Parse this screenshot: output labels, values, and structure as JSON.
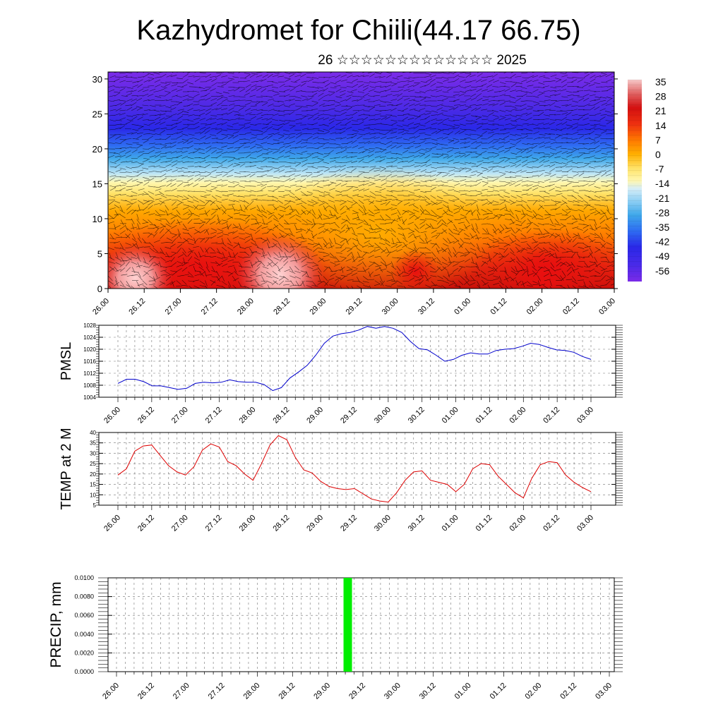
{
  "title": "Kazhydromet for Chiili(44.17 66.75)",
  "subtitle": "26 ☆☆☆☆☆☆☆☆☆☆☆☆☆ 2025",
  "chart_data": [
    {
      "type": "heatmap",
      "xlabel": "",
      "ylabel": "",
      "x_tick_labels": [
        "26.00",
        "26.12",
        "27.00",
        "27.12",
        "28.00",
        "28.12",
        "29.00",
        "29.12",
        "30.00",
        "30.12",
        "01.00",
        "01.12",
        "02.00",
        "02.12",
        "03.00"
      ],
      "y_range": [
        0,
        31
      ],
      "y_ticks": [
        0,
        5,
        10,
        15,
        20,
        25,
        30
      ],
      "colorbar_labels": [
        "35",
        "28",
        "21",
        "14",
        "7",
        "0",
        "-7",
        "-14",
        "-21",
        "-28",
        "-35",
        "-42",
        "-49",
        "-56"
      ],
      "colorbar_range": [
        -60,
        38
      ],
      "features": "temperature shading by height with wind barbs overlaid",
      "warm_cores": [
        {
          "x": 0.75,
          "y": 1.5,
          "value": 32
        },
        {
          "x": 4.75,
          "y": 2.0,
          "value": 36
        },
        {
          "x": 8.5,
          "y": 2.5,
          "value": 24
        },
        {
          "x": 12.0,
          "y": 2.0,
          "value": 25
        }
      ],
      "colors": {
        "hot": "#f6c8c8",
        "warm": "#e01010",
        "orange": "#ff9a00",
        "yellow": "#ffee66",
        "cold": "#2a3cff",
        "coldest": "#7b2be8"
      }
    },
    {
      "type": "line",
      "ylabel": "PMSL",
      "x_tick_labels": [
        "26.00",
        "26.12",
        "27.00",
        "27.12",
        "28.00",
        "28.12",
        "29.00",
        "29.12",
        "30.00",
        "30.12",
        "01.00",
        "01.12",
        "02.00",
        "02.12",
        "03.00"
      ],
      "ylim": [
        1004,
        1028
      ],
      "y_ticks": [
        "1004",
        "1008",
        "1012",
        "1016",
        "1020",
        "1024",
        "1028"
      ],
      "grid": true,
      "color": "#0000cc",
      "values": [
        1008.6,
        1010.0,
        1010.0,
        1009.2,
        1007.8,
        1007.8,
        1007.2,
        1006.6,
        1007.0,
        1008.6,
        1009.0,
        1008.8,
        1009.0,
        1009.8,
        1009.2,
        1009.0,
        1009.0,
        1008.2,
        1006.2,
        1007.2,
        1010.4,
        1012.4,
        1014.6,
        1018.0,
        1022.0,
        1024.4,
        1025.2,
        1025.6,
        1026.4,
        1027.6,
        1027.0,
        1027.6,
        1027.0,
        1025.6,
        1022.6,
        1020.2,
        1019.8,
        1018.0,
        1016.0,
        1016.6,
        1018.0,
        1018.8,
        1018.4,
        1018.4,
        1019.6,
        1020.0,
        1020.2,
        1021.0,
        1022.0,
        1021.6,
        1020.6,
        1019.8,
        1019.6,
        1019.0,
        1017.6,
        1016.6
      ]
    },
    {
      "type": "line",
      "ylabel": "TEMP at 2 M",
      "x_tick_labels": [
        "26.00",
        "26.12",
        "27.00",
        "27.12",
        "28.00",
        "28.12",
        "29.00",
        "29.12",
        "30.00",
        "30.12",
        "01.00",
        "01.12",
        "02.00",
        "02.12",
        "03.00"
      ],
      "ylim": [
        5,
        40
      ],
      "y_ticks": [
        "5",
        "10",
        "15",
        "20",
        "25",
        "30",
        "35",
        "40"
      ],
      "grid": true,
      "color": "#dd0000",
      "values": [
        19.5,
        22.5,
        31.0,
        33.5,
        34.0,
        29.0,
        24.0,
        21.0,
        19.5,
        23.5,
        31.5,
        34.5,
        33.0,
        26.0,
        24.0,
        20.0,
        17.0,
        25.0,
        34.0,
        38.5,
        36.5,
        28.0,
        22.0,
        20.5,
        16.5,
        14.0,
        13.0,
        12.5,
        13.0,
        10.5,
        8.0,
        7.0,
        6.5,
        11.0,
        17.0,
        21.0,
        21.5,
        17.0,
        16.0,
        15.0,
        11.5,
        15.0,
        22.5,
        25.0,
        24.5,
        19.0,
        15.0,
        11.0,
        8.5,
        18.0,
        24.5,
        26.0,
        25.5,
        19.5,
        16.0,
        13.5,
        11.5
      ]
    },
    {
      "type": "bar",
      "ylabel": "PRECIP, mm",
      "x_tick_labels": [
        "26.00",
        "26.12",
        "27.00",
        "27.12",
        "28.00",
        "28.12",
        "29.00",
        "29.12",
        "30.00",
        "30.12",
        "01.00",
        "01.12",
        "02.00",
        "02.12",
        "03.00"
      ],
      "ylim": [
        0,
        0.01
      ],
      "y_ticks": [
        "0.0000",
        "0.0020",
        "0.0040",
        "0.0060",
        "0.0080",
        "0.0100"
      ],
      "grid": true,
      "color": "#00ee00",
      "bars": [
        {
          "x": 6.75,
          "value": 0.01
        }
      ]
    }
  ]
}
